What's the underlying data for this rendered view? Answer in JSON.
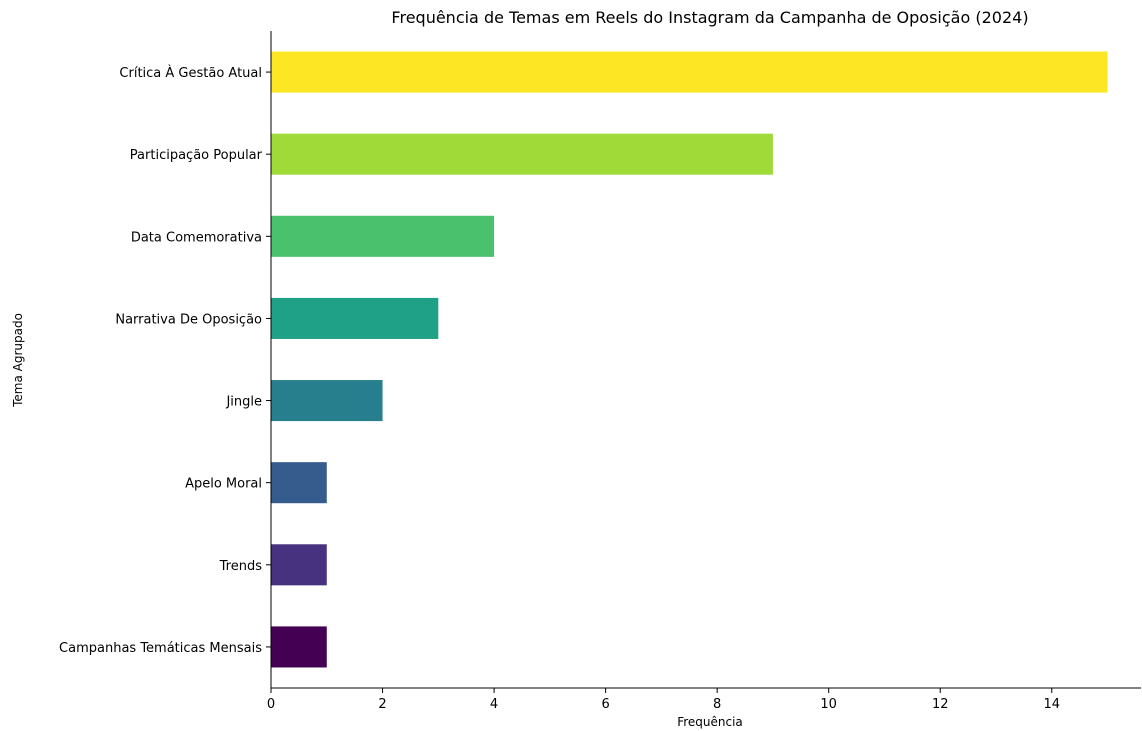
{
  "chart_data": {
    "type": "bar",
    "orientation": "horizontal",
    "title": "Frequência de Temas em Reels do Instagram da Campanha de Oposição (2024)",
    "xlabel": "Frequência",
    "ylabel": "Tema Agrupado",
    "xlim": [
      0,
      15.6
    ],
    "xticks": [
      0,
      2,
      4,
      6,
      8,
      10,
      12,
      14
    ],
    "grid": false,
    "categories": [
      "Crítica À Gestão Atual",
      "Participação Popular",
      "Data Comemorativa",
      "Narrativa De Oposição",
      "Jingle",
      "Apelo Moral",
      "Trends",
      "Campanhas Temáticas Mensais"
    ],
    "values": [
      15,
      9,
      4,
      3,
      2,
      1,
      1,
      1
    ],
    "colors": [
      "#fde725",
      "#a0da39",
      "#4ac16d",
      "#1fa187",
      "#277f8e",
      "#365c8d",
      "#46327e",
      "#440154"
    ]
  }
}
